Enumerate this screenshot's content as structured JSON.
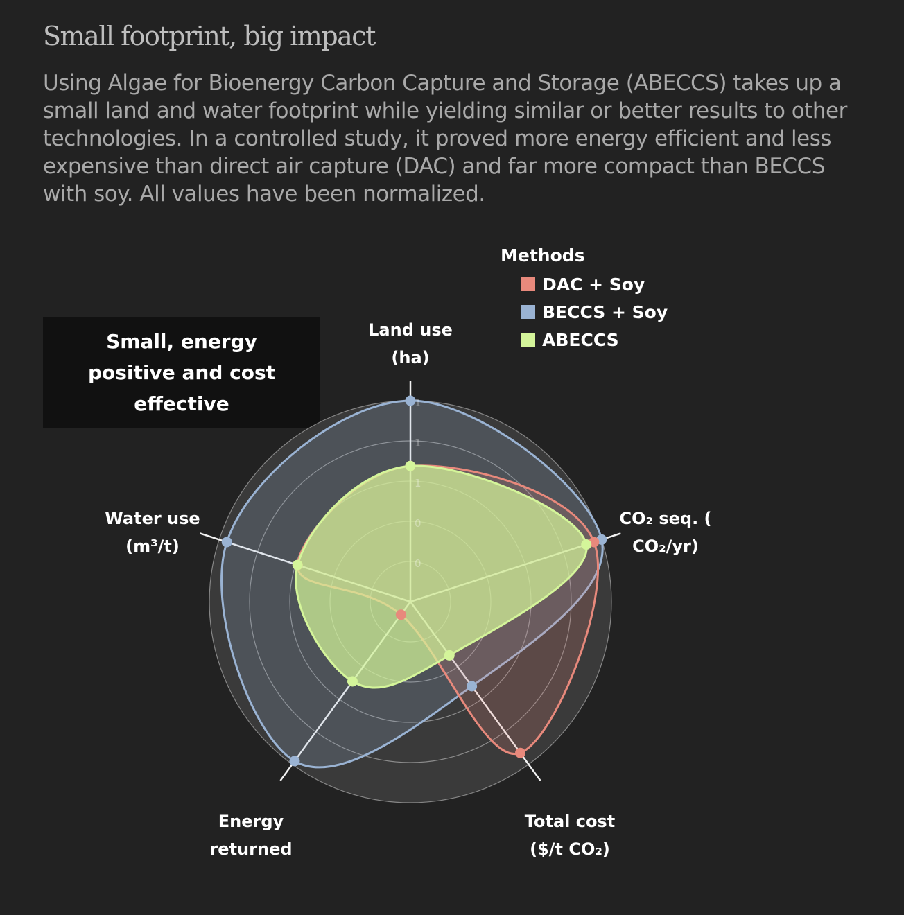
{
  "header": {
    "title": "Small footprint, big impact",
    "description": "Using Algae for Bioenergy Carbon Capture and Storage (ABECCS) takes up a small land and water footprint while yielding similar or better results to other technologies. In a controlled study, it proved more energy efficient and less expensive than direct air capture (DAC) and far more compact than BECCS with soy. All values have been normalized."
  },
  "callout": {
    "text": "Small, energy positive and cost effective"
  },
  "legend": {
    "title": "Methods",
    "items": [
      {
        "label": "DAC + Soy",
        "color": "#e8897c"
      },
      {
        "label": "BECCS + Soy",
        "color": "#9ab3d3"
      },
      {
        "label": "ABECCS",
        "color": "#d4f59a"
      }
    ]
  },
  "axis_labels": {
    "land_use": [
      "Land use",
      "(ha)"
    ],
    "co2_seq": [
      "CO₂ seq. (",
      "CO₂/yr)"
    ],
    "total_cost": [
      "Total cost",
      "($/t CO₂)"
    ],
    "energy_returned": [
      "Energy",
      "returned"
    ],
    "water_use": [
      "Water use",
      "(m³/t)"
    ]
  },
  "chart_data": {
    "type": "radar",
    "axes": [
      "Land use (ha)",
      "CO₂ seq. ( CO₂/yr)",
      "Total cost ($/t CO₂)",
      "Energy returned",
      "Water use (m³/t)"
    ],
    "rlim": [
      0,
      1
    ],
    "ring_tick_labels": [
      "1",
      "1",
      "1",
      "0",
      "0"
    ],
    "grid": true,
    "legend_position": "top-right",
    "series": [
      {
        "name": "DAC + Soy",
        "color": "#e8897c",
        "values": [
          0.675,
          0.96,
          0.93,
          0.08,
          0.59
        ]
      },
      {
        "name": "BECCS + Soy",
        "color": "#9ab3d3",
        "values": [
          1.0,
          1.0,
          0.52,
          0.98,
          0.96
        ]
      },
      {
        "name": "ABECCS",
        "color": "#d4f59a",
        "values": [
          0.675,
          0.92,
          0.33,
          0.49,
          0.59
        ]
      }
    ]
  }
}
